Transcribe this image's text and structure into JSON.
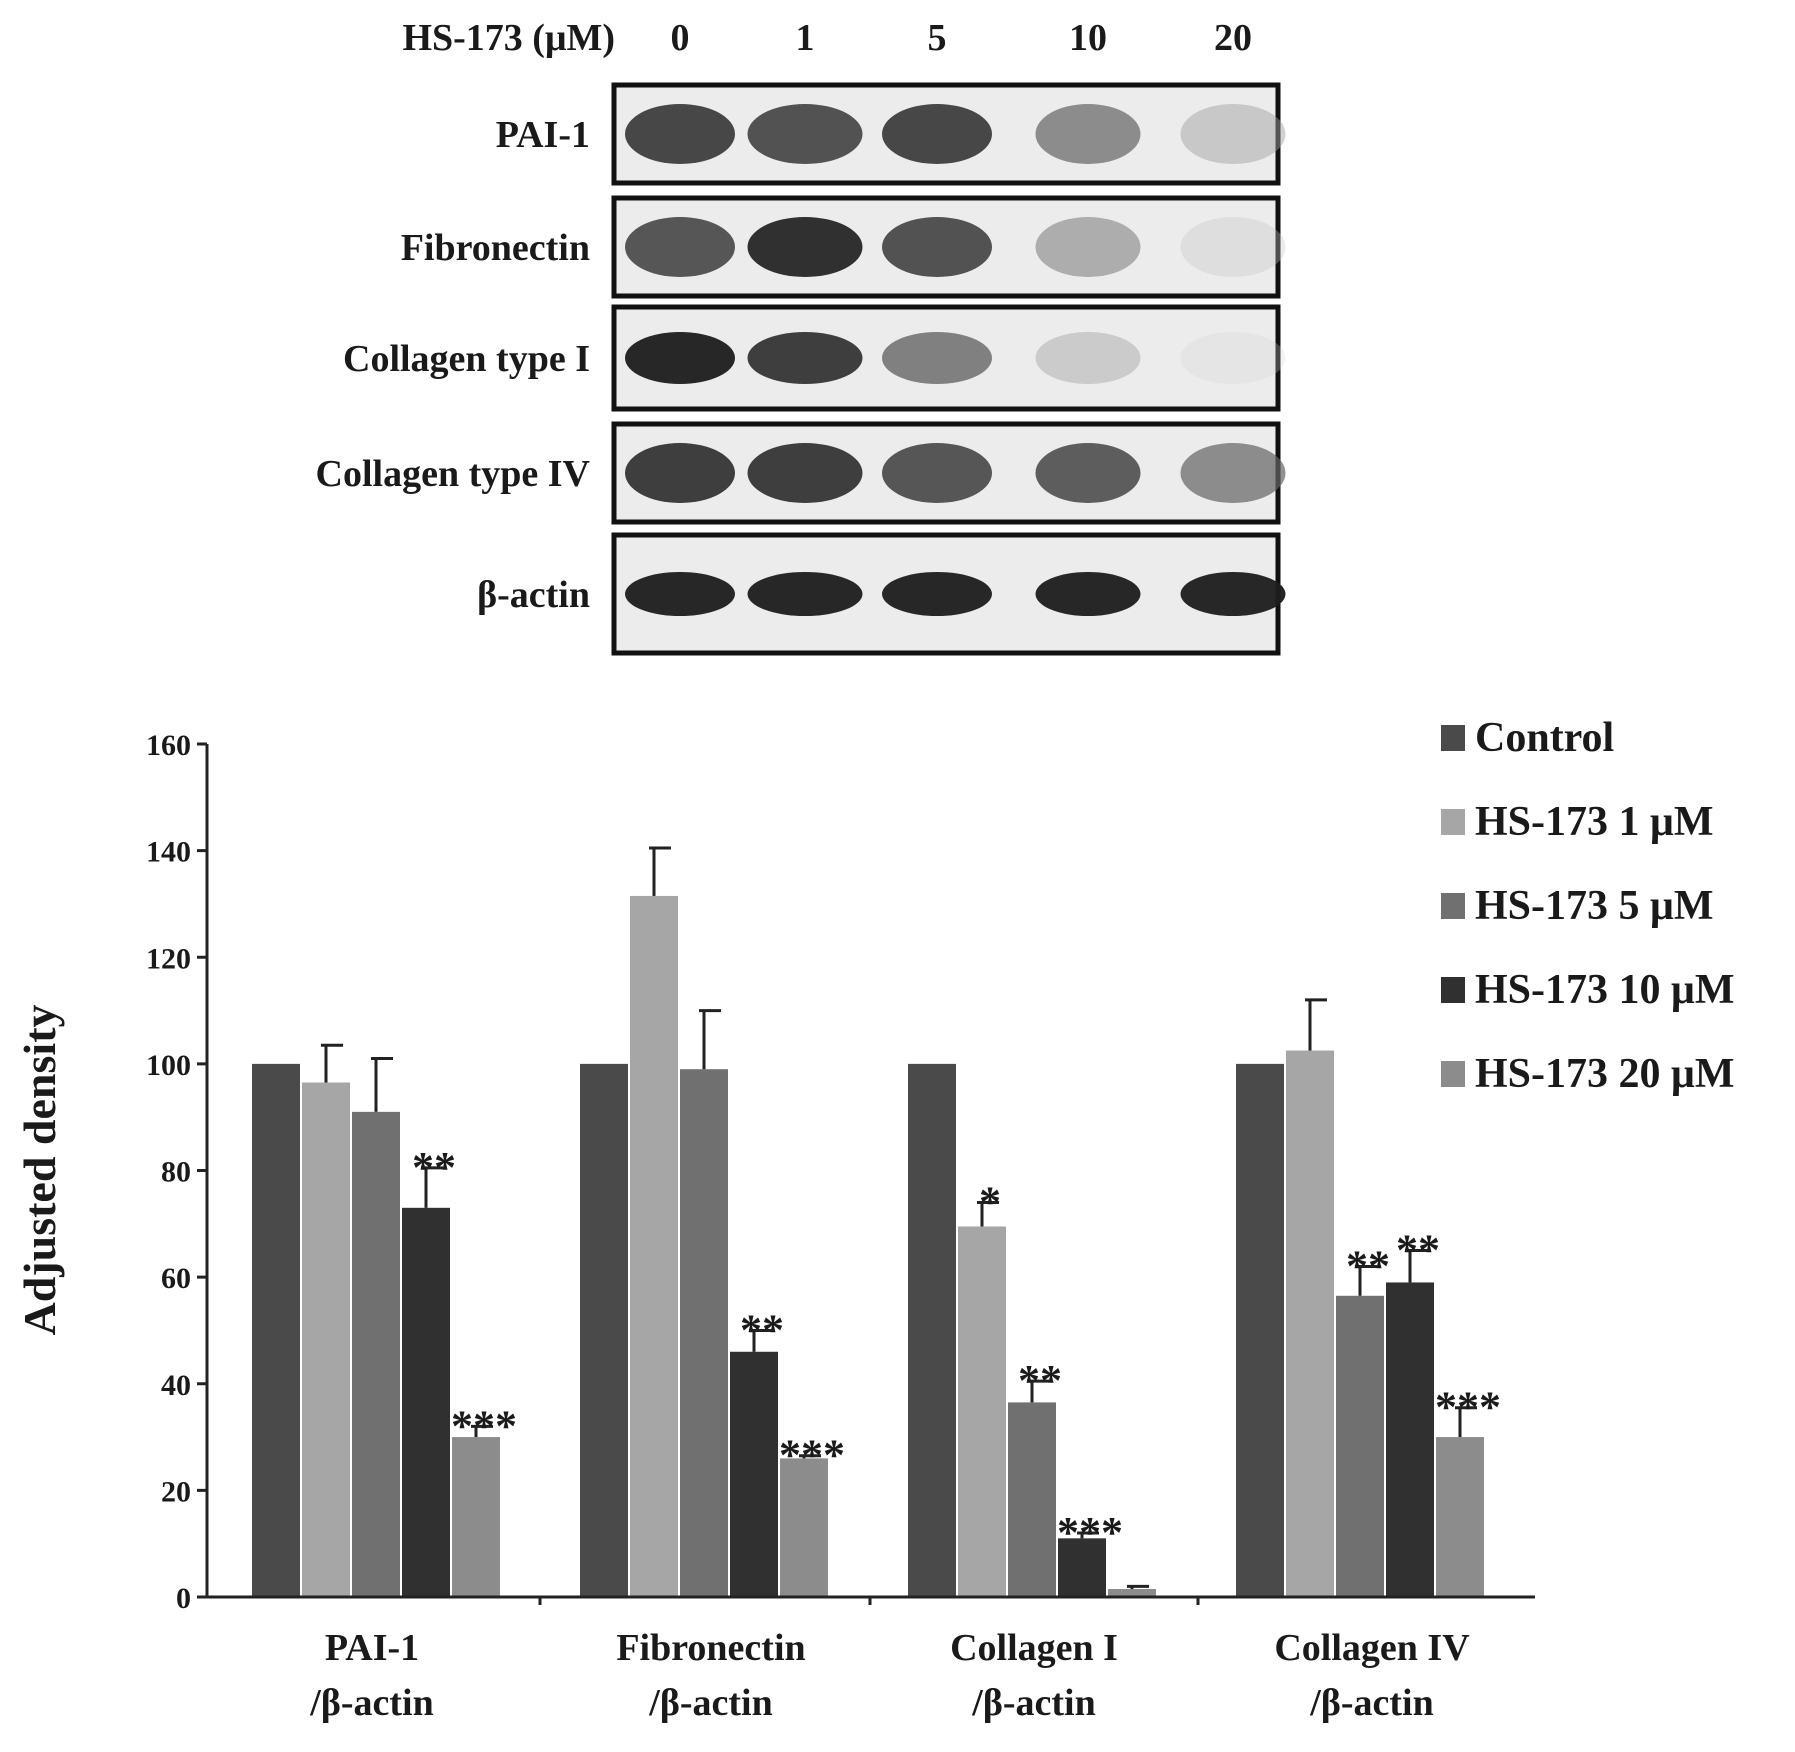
{
  "blot": {
    "dose_label": "HS-173 (μM)",
    "doses": [
      "0",
      "1",
      "5",
      "10",
      "20"
    ],
    "rows": [
      {
        "label": "PAI-1",
        "intensity": [
          0.85,
          0.82,
          0.85,
          0.6,
          0.3
        ]
      },
      {
        "label": "Fibronectin",
        "intensity": [
          0.8,
          0.92,
          0.82,
          0.45,
          0.12
        ]
      },
      {
        "label": "Collagen type I",
        "intensity": [
          0.95,
          0.88,
          0.65,
          0.28,
          0.04
        ]
      },
      {
        "label": "Collagen type IV",
        "intensity": [
          0.88,
          0.88,
          0.8,
          0.78,
          0.6
        ]
      },
      {
        "label": "β-actin",
        "intensity": [
          0.95,
          0.95,
          0.95,
          0.95,
          0.95
        ]
      }
    ]
  },
  "chart_data": {
    "type": "bar",
    "ylabel": "Adjusted density",
    "ylim": [
      0,
      160
    ],
    "yticks": [
      0,
      20,
      40,
      60,
      80,
      100,
      120,
      140,
      160
    ],
    "categories": [
      {
        "line1": "PAI-1",
        "line2": "/β-actin"
      },
      {
        "line1": "Fibronectin",
        "line2": "/β-actin"
      },
      {
        "line1": "Collagen I",
        "line2": "/β-actin"
      },
      {
        "line1": "Collagen IV",
        "line2": "/β-actin"
      }
    ],
    "series": [
      {
        "name": "Control",
        "color": "#4a4a4a",
        "values": [
          100,
          100,
          100,
          100
        ],
        "errors": [
          0,
          0,
          0,
          0
        ],
        "sig": [
          "",
          "",
          "",
          ""
        ]
      },
      {
        "name": "HS-173 1 μM",
        "color": "#a6a6a6",
        "values": [
          96.5,
          131.5,
          69.5,
          102.5
        ],
        "errors": [
          7,
          9,
          4.5,
          9.5
        ],
        "sig": [
          "",
          "",
          "*",
          ""
        ]
      },
      {
        "name": "HS-173 5 μM",
        "color": "#707070",
        "values": [
          91,
          99,
          36.5,
          56.5
        ],
        "errors": [
          10,
          11,
          4,
          5.5
        ],
        "sig": [
          "",
          "",
          "**",
          "**"
        ]
      },
      {
        "name": "HS-173 10 μM",
        "color": "#303030",
        "values": [
          73,
          46,
          11,
          59
        ],
        "errors": [
          7.5,
          4,
          1,
          6
        ],
        "sig": [
          "**",
          "**",
          "***",
          "**"
        ]
      },
      {
        "name": "HS-173 20 μM",
        "color": "#8c8c8c",
        "values": [
          30,
          26,
          1.5,
          30
        ],
        "errors": [
          2,
          0.5,
          0.5,
          5.5
        ],
        "sig": [
          "***",
          "***",
          "",
          "***"
        ]
      }
    ],
    "legend_position": "top-right",
    "grid": false
  }
}
